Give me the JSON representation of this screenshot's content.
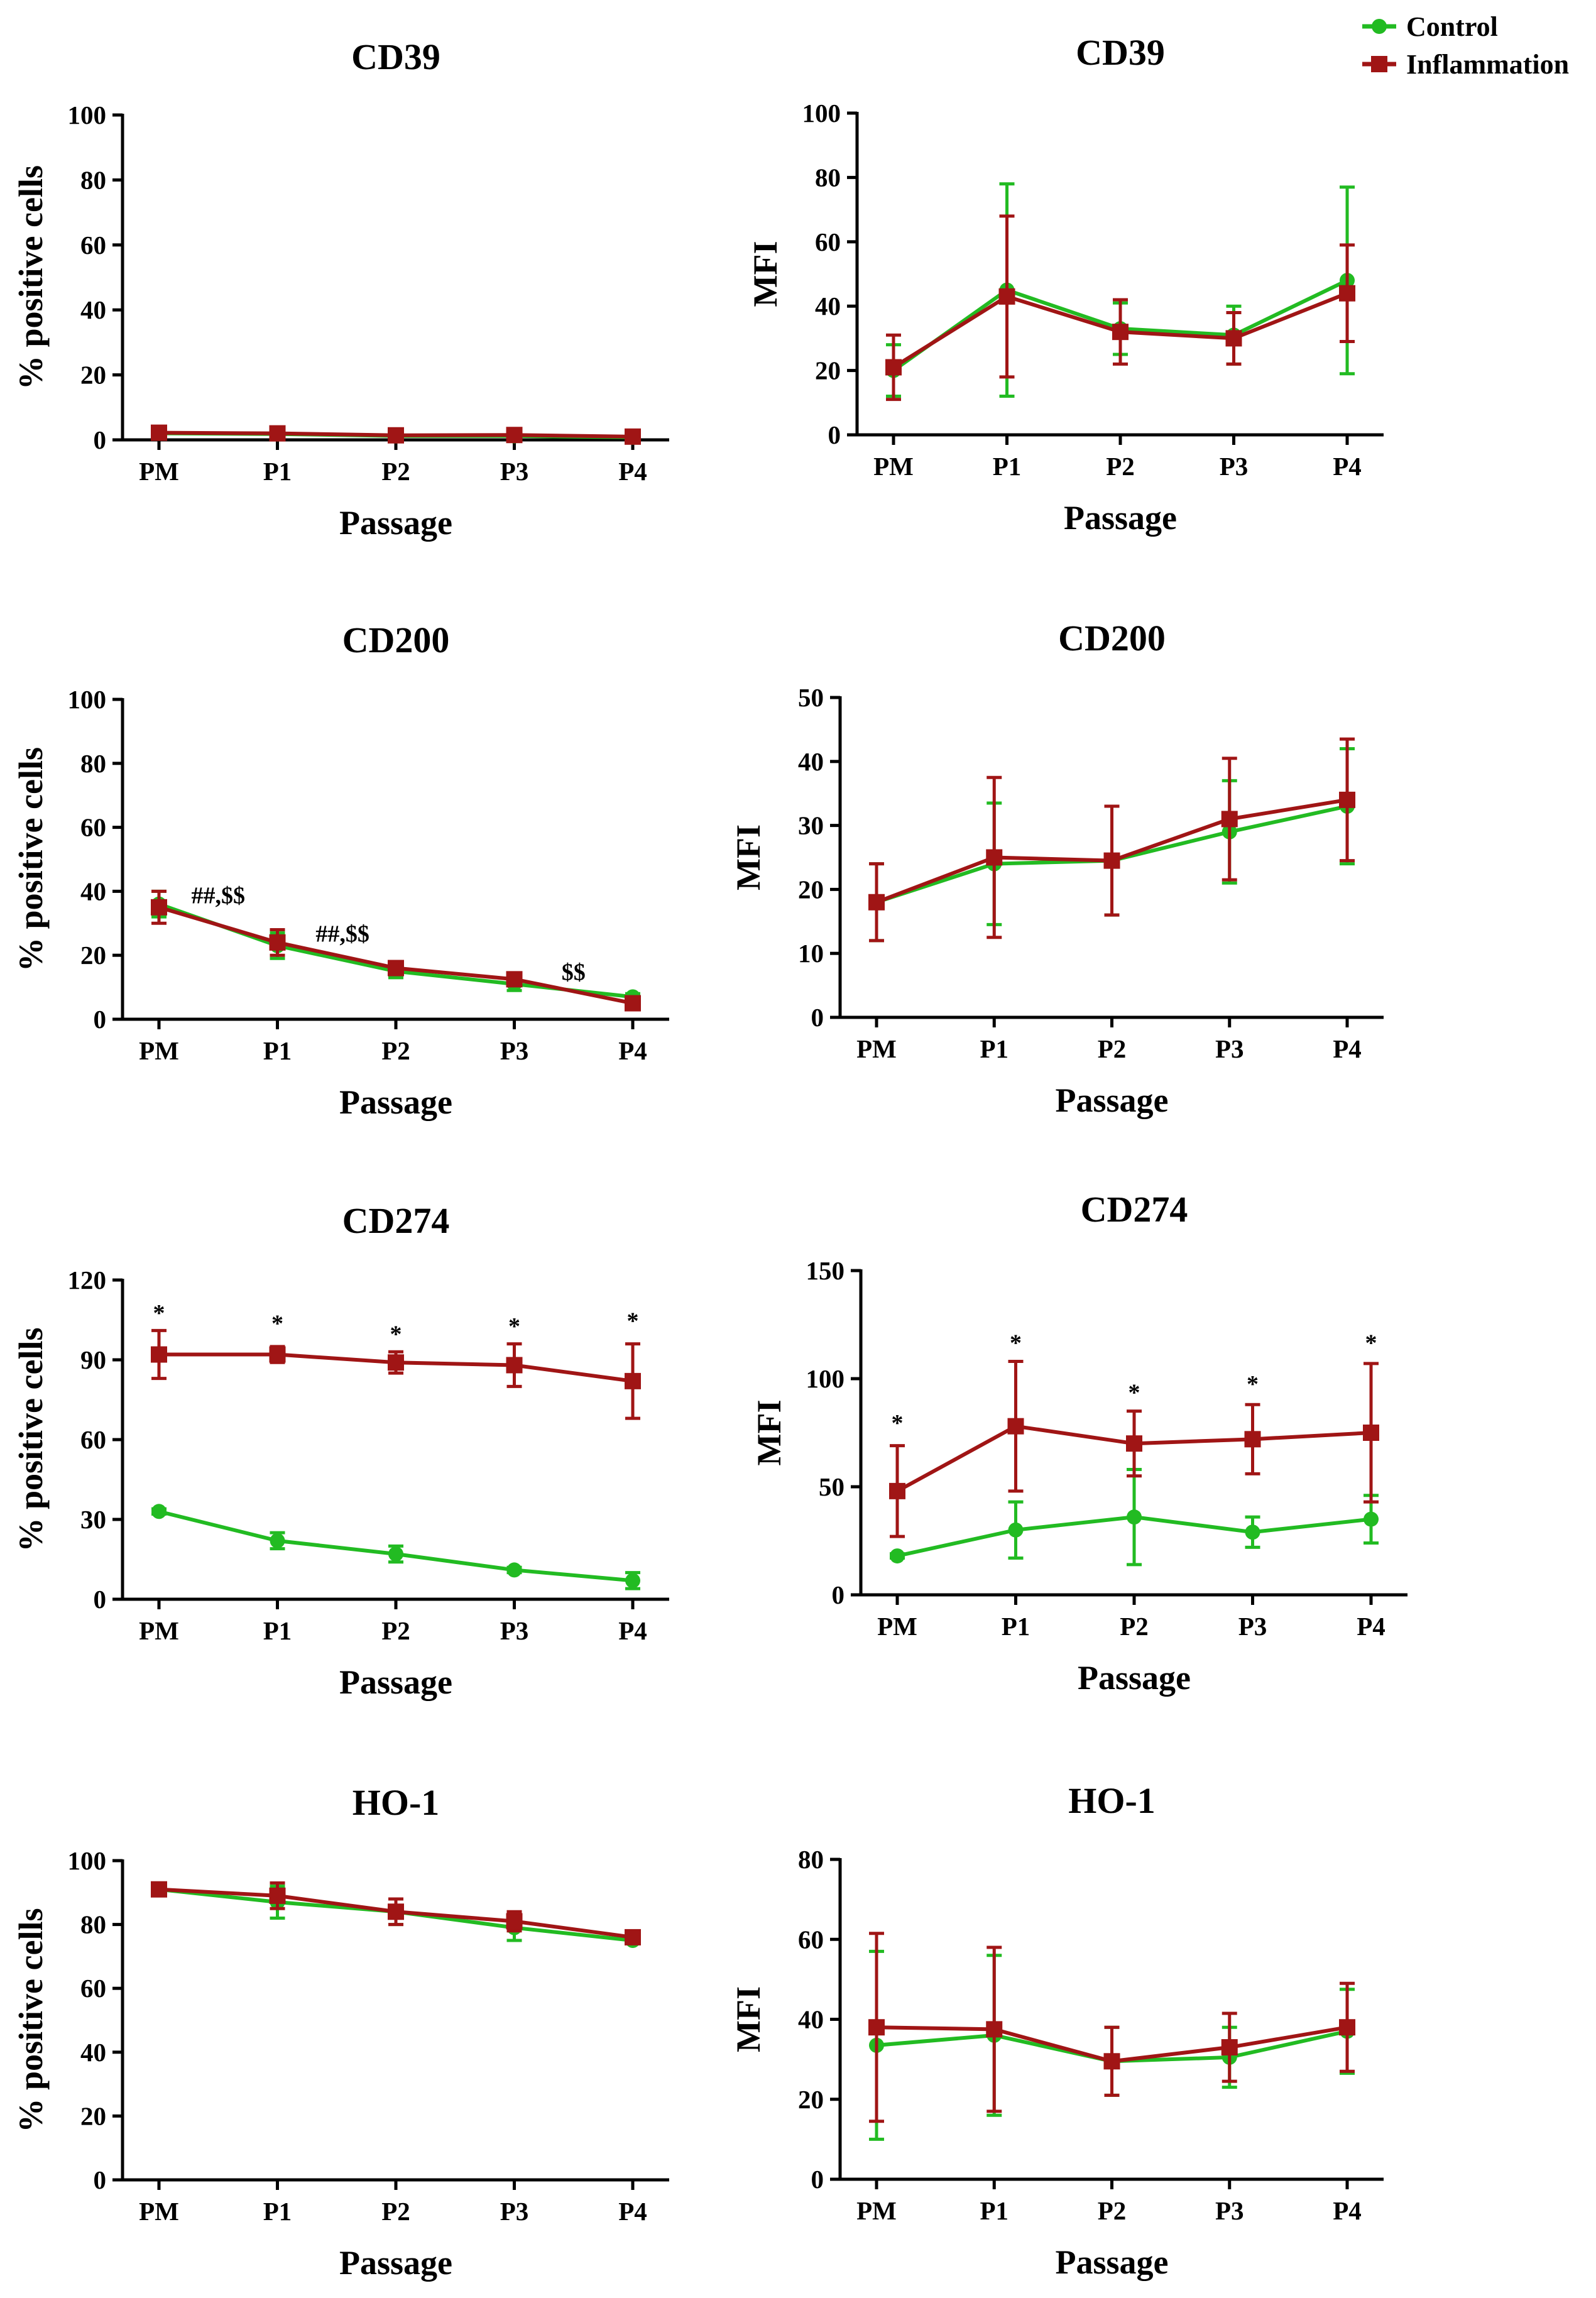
{
  "legend": {
    "items": [
      {
        "name": "Control",
        "color": "#22bb22",
        "marker": "circle"
      },
      {
        "name": "Inflammation",
        "color": "#a01515",
        "marker": "square"
      }
    ]
  },
  "colors": {
    "control": "#22bb22",
    "inflammation": "#a01515",
    "axis": "#000000"
  },
  "chart_data": [
    {
      "type": "line",
      "title": "CD39",
      "xlabel": "Passage",
      "ylabel": "% positive cells",
      "categories": [
        "PM",
        "P1",
        "P2",
        "P3",
        "P4"
      ],
      "ylim": [
        0,
        100
      ],
      "yticks": [
        0,
        20,
        40,
        60,
        80,
        100
      ],
      "series": [
        {
          "name": "Control",
          "values": [
            2.0,
            1.8,
            1.2,
            1.2,
            0.8
          ],
          "err": [
            0.6,
            0.6,
            0.5,
            0.5,
            0.4
          ]
        },
        {
          "name": "Inflammation",
          "values": [
            2.2,
            2.0,
            1.4,
            1.5,
            1.0
          ],
          "err": [
            0.7,
            0.7,
            0.5,
            0.5,
            0.4
          ]
        }
      ],
      "annotations": []
    },
    {
      "type": "line",
      "title": "CD39",
      "xlabel": "Passage",
      "ylabel": "MFI",
      "categories": [
        "PM",
        "P1",
        "P2",
        "P3",
        "P4"
      ],
      "ylim": [
        0,
        100
      ],
      "yticks": [
        0,
        20,
        40,
        60,
        80,
        100
      ],
      "series": [
        {
          "name": "Control",
          "values": [
            20,
            45,
            33,
            31,
            48
          ],
          "err": [
            8,
            33,
            8,
            9,
            29
          ]
        },
        {
          "name": "Inflammation",
          "values": [
            21,
            43,
            32,
            30,
            44
          ],
          "err": [
            10,
            25,
            10,
            8,
            15
          ]
        }
      ],
      "annotations": []
    },
    {
      "type": "line",
      "title": "CD200",
      "xlabel": "Passage",
      "ylabel": "% positive cells",
      "categories": [
        "PM",
        "P1",
        "P2",
        "P3",
        "P4"
      ],
      "ylim": [
        0,
        100
      ],
      "yticks": [
        0,
        20,
        40,
        60,
        80,
        100
      ],
      "series": [
        {
          "name": "Control",
          "values": [
            36,
            23,
            15,
            11,
            7
          ],
          "err": [
            4,
            4,
            2,
            2,
            1
          ]
        },
        {
          "name": "Inflammation",
          "values": [
            35,
            24,
            16,
            12.5,
            5
          ],
          "err": [
            5,
            4,
            2,
            2,
            1
          ]
        }
      ],
      "annotations": [
        {
          "text": "##,$$",
          "x": 0.5,
          "y": 39
        },
        {
          "text": "##,$$",
          "x": 1.55,
          "y": 27
        },
        {
          "text": "$$",
          "x": 3.5,
          "y": 15
        }
      ]
    },
    {
      "type": "line",
      "title": "CD200",
      "xlabel": "Passage",
      "ylabel": "MFI",
      "categories": [
        "PM",
        "P1",
        "P2",
        "P3",
        "P4"
      ],
      "ylim": [
        0,
        50
      ],
      "yticks": [
        0,
        10,
        20,
        30,
        40,
        50
      ],
      "series": [
        {
          "name": "Control",
          "values": [
            18,
            24,
            24.5,
            29,
            33
          ],
          "err": [
            6,
            9.5,
            8.5,
            8,
            9
          ]
        },
        {
          "name": "Inflammation",
          "values": [
            18,
            25,
            24.5,
            31,
            34
          ],
          "err": [
            6,
            12.5,
            8.5,
            9.5,
            9.5
          ]
        }
      ],
      "annotations": []
    },
    {
      "type": "line",
      "title": "CD274",
      "xlabel": "Passage",
      "ylabel": "% positive cells",
      "categories": [
        "PM",
        "P1",
        "P2",
        "P3",
        "P4"
      ],
      "ylim": [
        0,
        120
      ],
      "yticks": [
        0,
        30,
        60,
        90,
        120
      ],
      "series": [
        {
          "name": "Control",
          "values": [
            33,
            22,
            17,
            11,
            7
          ],
          "err": [
            1,
            3,
            3,
            1,
            3
          ]
        },
        {
          "name": "Inflammation",
          "values": [
            92,
            92,
            89,
            88,
            82
          ],
          "err": [
            9,
            3,
            4,
            8,
            14
          ]
        }
      ],
      "annotations": [
        {
          "text": "*",
          "x": 0,
          "y": 108
        },
        {
          "text": "*",
          "x": 1,
          "y": 104
        },
        {
          "text": "*",
          "x": 2,
          "y": 100
        },
        {
          "text": "*",
          "x": 3,
          "y": 103
        },
        {
          "text": "*",
          "x": 4,
          "y": 105
        }
      ]
    },
    {
      "type": "line",
      "title": "CD274",
      "xlabel": "Passage",
      "ylabel": "MFI",
      "categories": [
        "PM",
        "P1",
        "P2",
        "P3",
        "P4"
      ],
      "ylim": [
        0,
        150
      ],
      "yticks": [
        0,
        50,
        100,
        150
      ],
      "series": [
        {
          "name": "Control",
          "values": [
            18,
            30,
            36,
            29,
            35
          ],
          "err": [
            1,
            13,
            22,
            7,
            11
          ]
        },
        {
          "name": "Inflammation",
          "values": [
            48,
            78,
            70,
            72,
            75
          ],
          "err": [
            21,
            30,
            15,
            16,
            32
          ]
        }
      ],
      "annotations": [
        {
          "text": "*",
          "x": 0,
          "y": 80
        },
        {
          "text": "*",
          "x": 1,
          "y": 117
        },
        {
          "text": "*",
          "x": 2,
          "y": 94
        },
        {
          "text": "*",
          "x": 3,
          "y": 98
        },
        {
          "text": "*",
          "x": 4,
          "y": 117
        }
      ]
    },
    {
      "type": "line",
      "title": "HO-1",
      "xlabel": "Passage",
      "ylabel": "% positive cells",
      "categories": [
        "PM",
        "P1",
        "P2",
        "P3",
        "P4"
      ],
      "ylim": [
        0,
        100
      ],
      "yticks": [
        0,
        20,
        40,
        60,
        80,
        100
      ],
      "series": [
        {
          "name": "Control",
          "values": [
            91,
            87,
            84,
            79,
            75
          ],
          "err": [
            1,
            5,
            4,
            4,
            1
          ]
        },
        {
          "name": "Inflammation",
          "values": [
            91,
            89,
            84,
            81,
            76
          ],
          "err": [
            1,
            4,
            4,
            3,
            1
          ]
        }
      ],
      "annotations": []
    },
    {
      "type": "line",
      "title": "HO-1",
      "xlabel": "Passage",
      "ylabel": "MFI",
      "categories": [
        "PM",
        "P1",
        "P2",
        "P3",
        "P4"
      ],
      "ylim": [
        0,
        80
      ],
      "yticks": [
        0,
        20,
        40,
        60,
        80
      ],
      "series": [
        {
          "name": "Control",
          "values": [
            33.5,
            36,
            29.5,
            30.5,
            37
          ],
          "err": [
            23.5,
            20,
            8.5,
            7.5,
            10.5
          ]
        },
        {
          "name": "Inflammation",
          "values": [
            38,
            37.5,
            29.5,
            33,
            38
          ],
          "err": [
            23.5,
            20.5,
            8.5,
            8.5,
            11
          ]
        }
      ],
      "annotations": []
    }
  ]
}
